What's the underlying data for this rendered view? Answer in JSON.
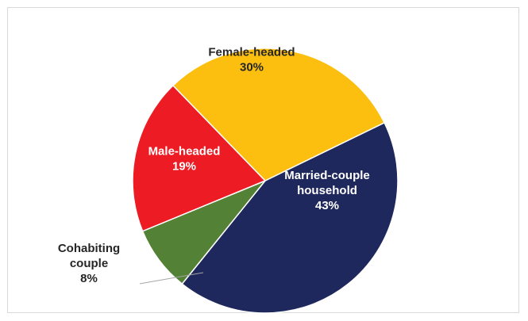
{
  "chart_data": {
    "type": "pie",
    "title": "",
    "slices": [
      {
        "label": "Married-couple household",
        "label_lines": [
          "Married-couple",
          "household"
        ],
        "value": 43,
        "value_label": "43%",
        "color": "#1f285c",
        "text_color": "#ffffff"
      },
      {
        "label": "Cohabiting couple",
        "label_lines": [
          "Cohabiting",
          "couple"
        ],
        "value": 8,
        "value_label": "8%",
        "color": "#538135",
        "text_color": "#262626"
      },
      {
        "label": "Male-headed",
        "label_lines": [
          "Male-headed"
        ],
        "value": 19,
        "value_label": "19%",
        "color": "#ed1c24",
        "text_color": "#ffffff"
      },
      {
        "label": "Female-headed",
        "label_lines": [
          "Female-headed"
        ],
        "value": 30,
        "value_label": "30%",
        "color": "#fcbf0f",
        "text_color": "#262626"
      }
    ],
    "start_angle_deg": 64,
    "legend": "none",
    "data_labels": "inside-except-cohabiting-outside-with-leader"
  }
}
